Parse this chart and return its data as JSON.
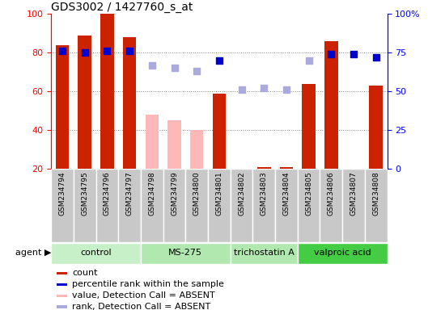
{
  "title": "GDS3002 / 1427760_s_at",
  "samples": [
    "GSM234794",
    "GSM234795",
    "GSM234796",
    "GSM234797",
    "GSM234798",
    "GSM234799",
    "GSM234800",
    "GSM234801",
    "GSM234802",
    "GSM234803",
    "GSM234804",
    "GSM234805",
    "GSM234806",
    "GSM234807",
    "GSM234808"
  ],
  "agents": [
    {
      "label": "control",
      "start": 0,
      "end": 4,
      "color": "#c8f0c8"
    },
    {
      "label": "MS-275",
      "start": 4,
      "end": 8,
      "color": "#b0e8b0"
    },
    {
      "label": "trichostatin A",
      "start": 8,
      "end": 11,
      "color": "#b0e8b0"
    },
    {
      "label": "valproic acid",
      "start": 11,
      "end": 15,
      "color": "#44cc44"
    }
  ],
  "count_values": [
    84,
    89,
    100,
    88,
    null,
    null,
    null,
    59,
    null,
    21,
    21,
    64,
    86,
    null,
    63
  ],
  "count_absent": [
    null,
    null,
    null,
    null,
    48,
    45,
    40,
    null,
    null,
    null,
    null,
    null,
    null,
    null,
    null
  ],
  "percentile_values": [
    76,
    75,
    76,
    76,
    null,
    null,
    null,
    70,
    null,
    null,
    null,
    null,
    74,
    74,
    72
  ],
  "percentile_absent": [
    null,
    null,
    null,
    null,
    67,
    65,
    63,
    null,
    51,
    52,
    51,
    70,
    null,
    null,
    null
  ],
  "ylim_left": [
    20,
    100
  ],
  "ylim_right": [
    0,
    100
  ],
  "bar_color_present": "#cc2200",
  "bar_color_absent": "#ffb8b8",
  "dot_color_present": "#0000cc",
  "dot_color_absent": "#aaaadd",
  "tick_bg_color": "#c8c8c8",
  "legend_items": [
    {
      "color": "#cc2200",
      "label": "count"
    },
    {
      "color": "#0000cc",
      "label": "percentile rank within the sample"
    },
    {
      "color": "#ffb8b8",
      "label": "value, Detection Call = ABSENT"
    },
    {
      "color": "#aaaadd",
      "label": "rank, Detection Call = ABSENT"
    }
  ]
}
